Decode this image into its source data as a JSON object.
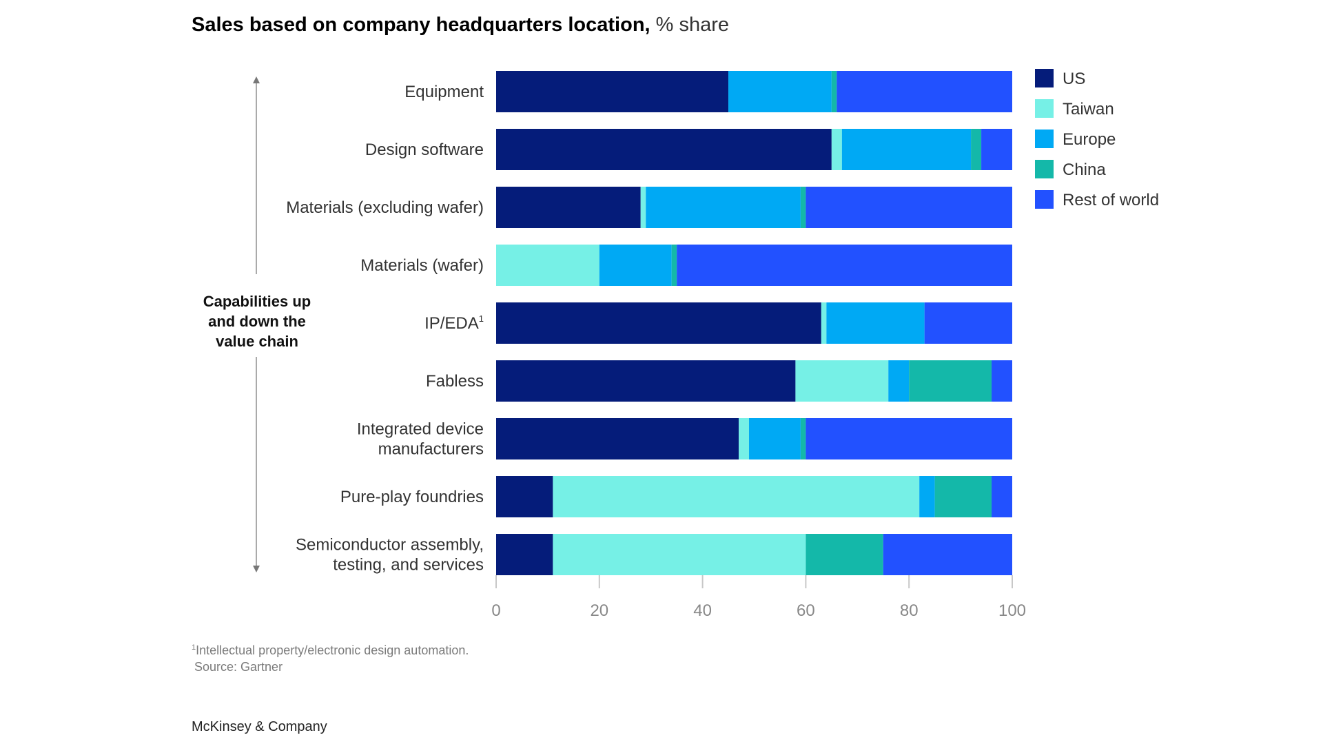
{
  "chart_data": {
    "type": "bar",
    "orientation": "horizontal",
    "stacked": true,
    "title": "Sales based on company headquarters location,",
    "title_unit": "% share",
    "xlabel": "",
    "ylabel": "Capabilities up and down the value chain",
    "ylabel_lines": [
      "Capabilities up",
      "and down the",
      "value chain"
    ],
    "xlim": [
      0,
      100
    ],
    "xticks": [
      0,
      20,
      40,
      60,
      80,
      100
    ],
    "grid": false,
    "legend_position": "top-right",
    "categories": [
      {
        "lines": [
          "Equipment"
        ]
      },
      {
        "lines": [
          "Design software"
        ]
      },
      {
        "lines": [
          "Materials (excluding wafer)"
        ]
      },
      {
        "lines": [
          "Materials (wafer)"
        ]
      },
      {
        "lines": [
          "IP/EDA"
        ],
        "superscript": "1"
      },
      {
        "lines": [
          "Fabless"
        ]
      },
      {
        "lines": [
          "Integrated device",
          "manufacturers"
        ]
      },
      {
        "lines": [
          "Pure-play foundries"
        ]
      },
      {
        "lines": [
          "Semiconductor assembly,",
          "testing, and services"
        ]
      }
    ],
    "series": [
      {
        "name": "US",
        "color": "#051c7a",
        "values": [
          45,
          65,
          28,
          0,
          63,
          58,
          47,
          11,
          11
        ]
      },
      {
        "name": "Taiwan",
        "color": "#76f0e6",
        "values": [
          0,
          2,
          1,
          20,
          1,
          18,
          2,
          71,
          49
        ]
      },
      {
        "name": "Europe",
        "color": "#00a9f4",
        "values": [
          20,
          25,
          30,
          14,
          19,
          4,
          10,
          3,
          0
        ]
      },
      {
        "name": "China",
        "color": "#14b8a9",
        "values": [
          1,
          2,
          1,
          1,
          0,
          16,
          1,
          11,
          15
        ]
      },
      {
        "name": "Rest of world",
        "color": "#2251ff",
        "values": [
          34,
          6,
          40,
          65,
          17,
          4,
          40,
          4,
          25
        ]
      }
    ]
  },
  "footnote": {
    "marker": "1",
    "text": "Intellectual property/electronic design automation.",
    "source": "Source: Gartner"
  },
  "brand": "McKinsey & Company"
}
